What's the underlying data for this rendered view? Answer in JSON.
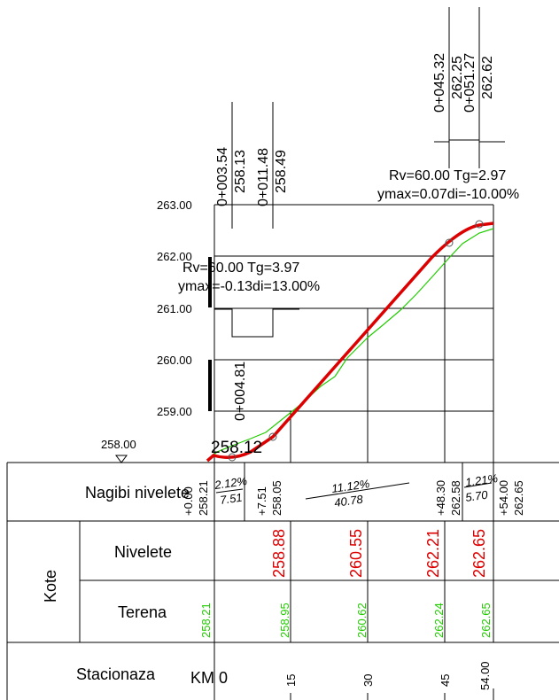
{
  "elev_labels": [
    "263.00",
    "262.00",
    "261.00",
    "260.00",
    "259.00"
  ],
  "datum": "258.00",
  "point_label": "258.12",
  "curve1": {
    "station_start": "0+003.54",
    "elev_start": "258.13",
    "station_end": "0+011.48",
    "elev_end": "258.49",
    "rv_tg": "Rv=60.00 Tg=3.97",
    "ymax_di": "ymax=-0.13di=13.00%",
    "mid_station": "0+004.81"
  },
  "curve2": {
    "station_start": "0+045.32",
    "elev_start": "262.25",
    "station_end": "0+051.27",
    "elev_end": "262.62",
    "rv_tg": "Rv=60.00 Tg=2.97",
    "ymax_di": "ymax=0.07di=-10.00%"
  },
  "table": {
    "nagibi_label": "Nagibi nivelete",
    "kote_label": "Kote",
    "nivelete_label": "Nivelete",
    "terena_label": "Terena",
    "stacionaza_label": "Stacionaza",
    "km_label": "KM 0"
  },
  "grades": [
    {
      "pct": "2.12%",
      "len": "7.51"
    },
    {
      "pct": "11.12%",
      "len": "40.78"
    },
    {
      "pct": "1.21%",
      "len": "5.70"
    }
  ],
  "break_points": [
    {
      "station": "+0.00",
      "elev": "258.21"
    },
    {
      "station": "+7.51",
      "elev": "258.05"
    },
    {
      "station": "+48.30",
      "elev": "262.58"
    },
    {
      "station": "+54.00",
      "elev": "262.65"
    }
  ],
  "nivelete_values": [
    "258.88",
    "260.55",
    "262.21",
    "262.65"
  ],
  "terena_values": [
    "258.21",
    "258.95",
    "260.62",
    "262.24",
    "262.65"
  ],
  "stations": [
    "15",
    "30",
    "45",
    "54.00"
  ],
  "colors": {
    "nivelete": "#dd0000",
    "terena": "#22cc00",
    "line": "#000000"
  }
}
